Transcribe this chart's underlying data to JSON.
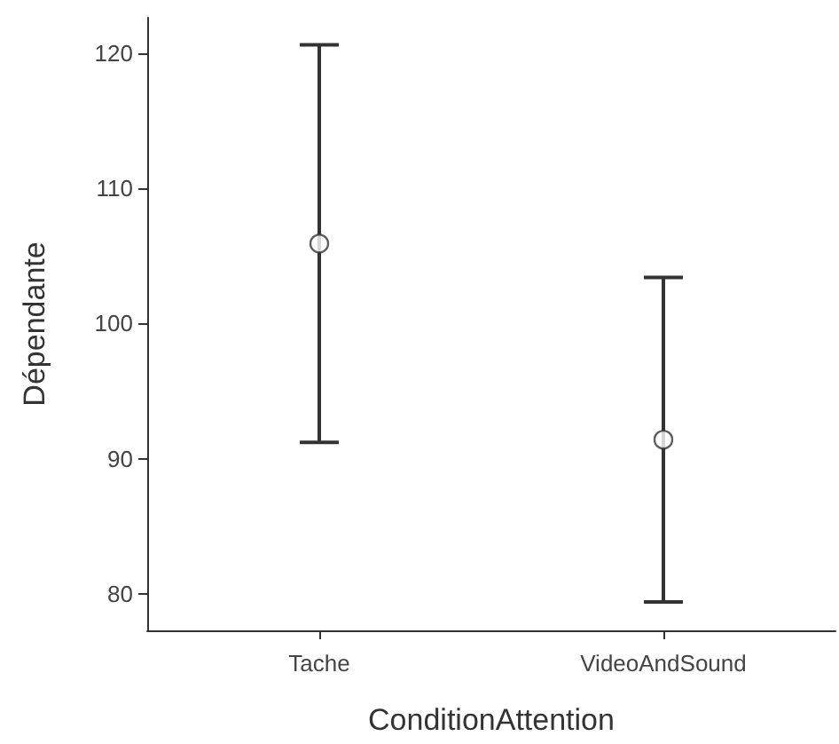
{
  "chart_data": {
    "type": "scatter",
    "xlabel": "ConditionAttention",
    "ylabel": "Dépendante",
    "categories": [
      "Tache",
      "VideoAndSound"
    ],
    "values": [
      105.9,
      91.4
    ],
    "errors": [
      14.7,
      12.0
    ],
    "color": "#333333",
    "marker": "circle",
    "ylim": [
      77.3,
      122.6
    ],
    "yticks": [
      80,
      90,
      100,
      110,
      120
    ],
    "grid": false
  }
}
